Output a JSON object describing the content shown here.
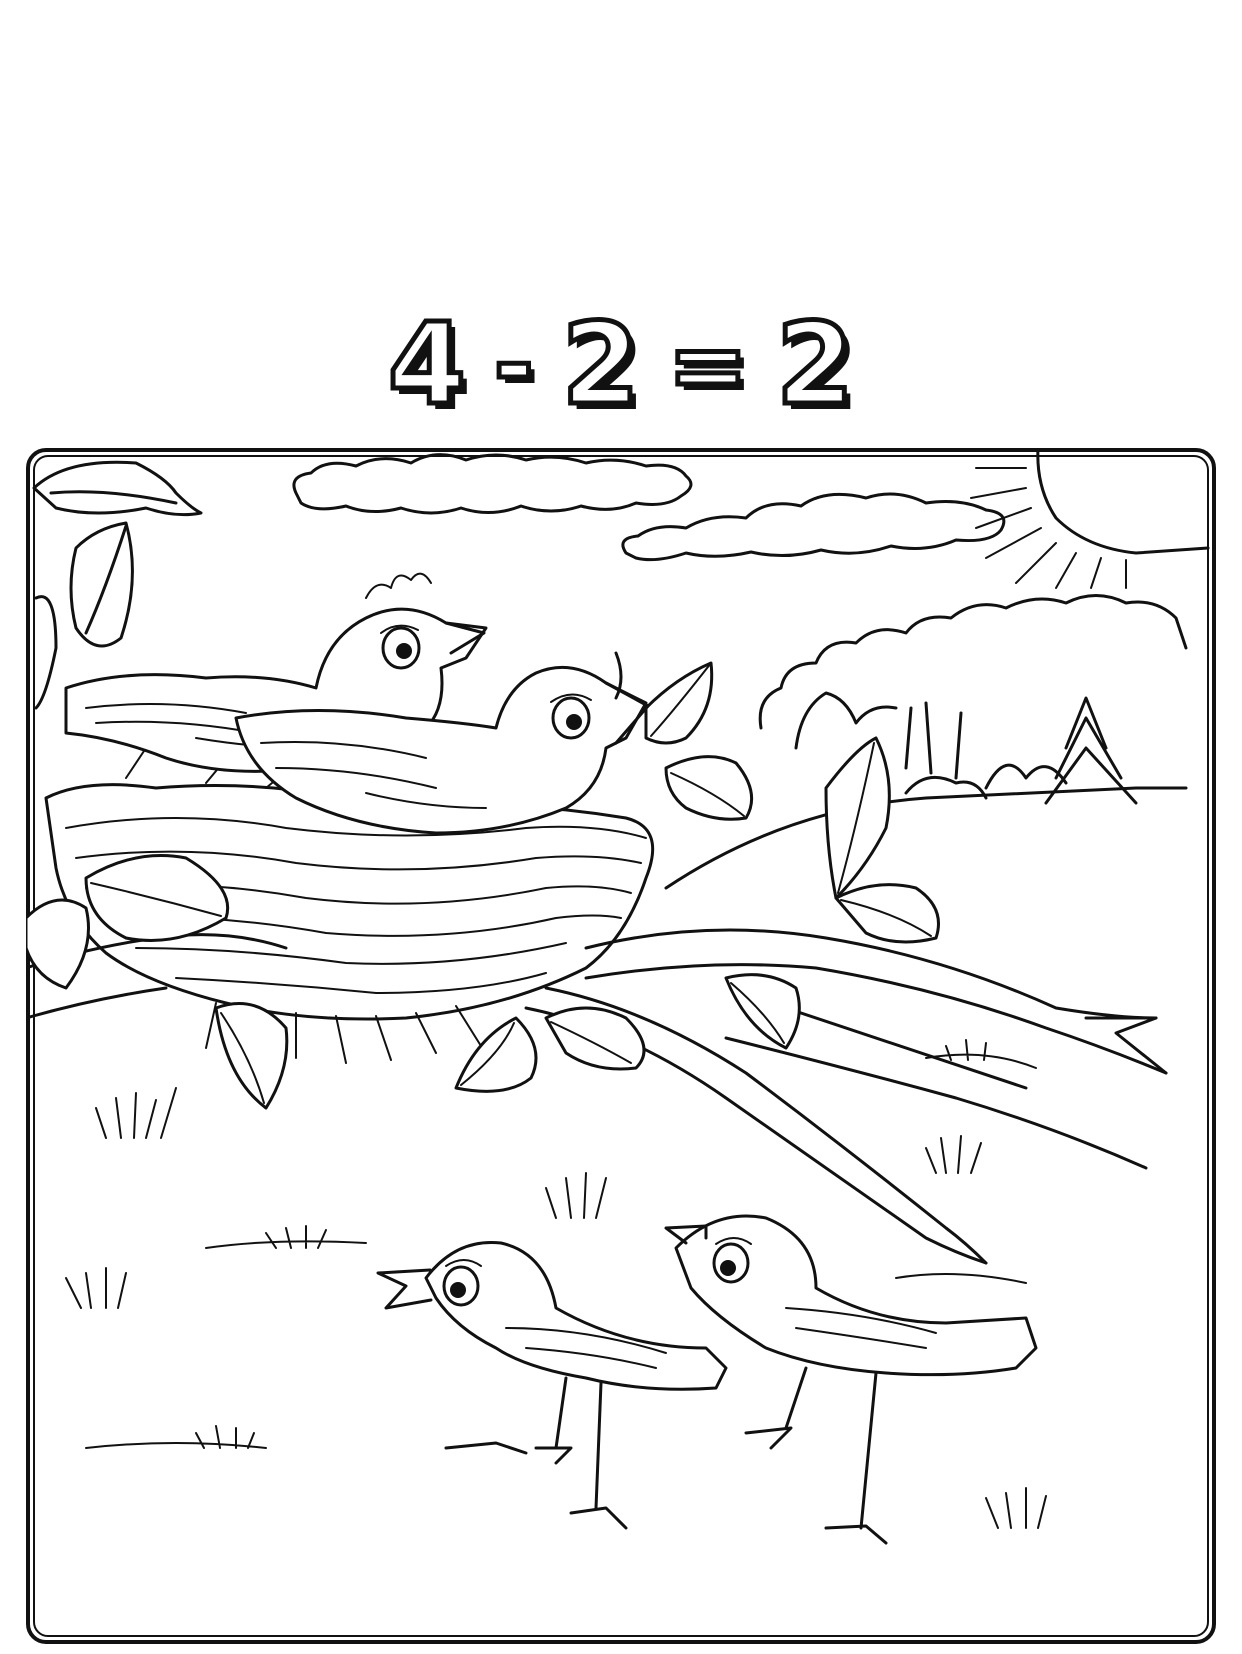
{
  "equation": {
    "operand_a": "4",
    "operator": "-",
    "operand_b": "2",
    "equals": "=",
    "result": "2"
  },
  "scene": {
    "birds_in_nest": 2,
    "birds_on_ground": 2
  },
  "colors": {
    "ink": "#111111",
    "paper": "#ffffff"
  }
}
